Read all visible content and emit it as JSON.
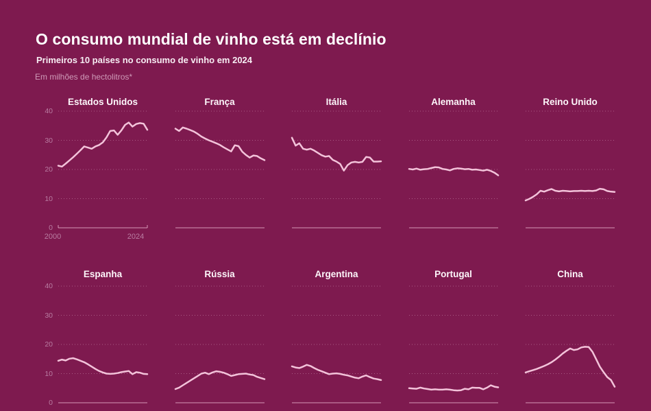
{
  "page": {
    "title": "O consumo mundial de vinho está em declínio",
    "subtitle": "Primeiros 10 países no consumo de vinho em 2024",
    "unit_note": "Em milhões de hectolitros*"
  },
  "colors": {
    "background": "#7e1a4f",
    "line": "#f3c3da",
    "grid_dotted": "rgba(243,195,218,0.38)",
    "axis_line": "rgba(243,195,218,0.75)",
    "tick_label": "#b97da2",
    "title_text": "#ffffff",
    "note_text": "#cf9ab8"
  },
  "chart_data": {
    "type": "line",
    "layout": "small multiples, 2 rows x 5 columns",
    "title": "O consumo mundial de vinho está em declínio",
    "subtitle": "Primeiros 10 países no consumo de vinho em 2024",
    "ylabel": "Em milhões de hectolitros*",
    "unit": "milhões de hectolitros",
    "x_start": 2000,
    "x_end": 2024,
    "ylim": [
      0,
      40
    ],
    "yticks": [
      0,
      10,
      20,
      30,
      40
    ],
    "yticks_labeled_on": "first column only",
    "xtick_labels": [
      "2000",
      "2024"
    ],
    "xticks_labeled_on": "first chart only",
    "grid": "dotted horizontal gridlines, solid zero axis",
    "legend_position": "none (panel titles)",
    "series": [
      {
        "name": "Estados Unidos",
        "values": [
          21.3,
          21.0,
          22.0,
          23.1,
          24.2,
          25.4,
          26.6,
          27.9,
          27.5,
          27.1,
          27.9,
          28.4,
          29.3,
          31.0,
          33.2,
          33.4,
          31.9,
          33.4,
          35.3,
          36.1,
          34.7,
          35.6,
          35.9,
          35.7,
          33.6
        ]
      },
      {
        "name": "França",
        "values": [
          34.0,
          33.2,
          34.4,
          34.0,
          33.5,
          33.0,
          32.2,
          31.3,
          30.6,
          30.0,
          29.5,
          29.0,
          28.4,
          27.6,
          26.9,
          26.2,
          28.3,
          28.0,
          26.1,
          25.0,
          24.1,
          24.8,
          24.6,
          23.8,
          23.2
        ]
      },
      {
        "name": "Itália",
        "values": [
          30.9,
          28.2,
          29.0,
          27.1,
          26.8,
          27.1,
          26.5,
          25.7,
          24.9,
          24.4,
          24.6,
          23.3,
          22.7,
          21.9,
          19.6,
          21.5,
          22.4,
          22.6,
          22.4,
          22.6,
          24.3,
          24.1,
          22.7,
          22.7,
          22.8
        ]
      },
      {
        "name": "Alemanha",
        "values": [
          20.2,
          20.0,
          20.3,
          19.9,
          20.1,
          20.2,
          20.5,
          20.8,
          20.7,
          20.2,
          20.0,
          19.7,
          20.2,
          20.4,
          20.3,
          20.1,
          20.2,
          19.9,
          20.0,
          19.8,
          19.6,
          19.9,
          19.5,
          18.9,
          18.0
        ]
      },
      {
        "name": "Reino Unido",
        "values": [
          9.4,
          9.9,
          10.6,
          11.5,
          12.7,
          12.4,
          12.9,
          13.3,
          12.7,
          12.5,
          12.7,
          12.6,
          12.5,
          12.6,
          12.6,
          12.7,
          12.6,
          12.7,
          12.6,
          12.8,
          13.4,
          13.2,
          12.6,
          12.4,
          12.3
        ]
      },
      {
        "name": "Espanha",
        "values": [
          14.4,
          14.8,
          14.5,
          15.1,
          15.3,
          14.9,
          14.4,
          13.9,
          13.2,
          12.4,
          11.6,
          10.9,
          10.4,
          10.0,
          9.9,
          10.0,
          10.2,
          10.5,
          10.7,
          10.9,
          9.8,
          10.5,
          10.3,
          9.9,
          9.8
        ]
      },
      {
        "name": "Rússia",
        "values": [
          4.7,
          5.2,
          6.0,
          6.8,
          7.6,
          8.4,
          9.2,
          10.0,
          10.3,
          9.8,
          10.4,
          10.8,
          10.6,
          10.3,
          9.8,
          9.2,
          9.5,
          9.8,
          9.9,
          10.0,
          9.7,
          9.5,
          8.9,
          8.5,
          8.1
        ]
      },
      {
        "name": "Argentina",
        "values": [
          12.5,
          12.1,
          11.9,
          12.4,
          13.0,
          12.6,
          11.9,
          11.3,
          10.8,
          10.3,
          9.8,
          10.0,
          10.1,
          9.9,
          9.6,
          9.4,
          9.0,
          8.6,
          8.4,
          9.0,
          9.4,
          8.8,
          8.3,
          8.1,
          7.8
        ]
      },
      {
        "name": "Portugal",
        "values": [
          5.0,
          4.9,
          4.8,
          5.2,
          4.9,
          4.7,
          4.5,
          4.6,
          4.5,
          4.5,
          4.6,
          4.5,
          4.3,
          4.2,
          4.3,
          4.8,
          4.6,
          5.2,
          5.1,
          5.1,
          4.6,
          5.2,
          6.0,
          5.5,
          5.3
        ]
      },
      {
        "name": "China",
        "values": [
          10.4,
          10.8,
          11.2,
          11.6,
          12.1,
          12.6,
          13.2,
          13.9,
          14.8,
          15.8,
          16.9,
          17.8,
          18.6,
          18.1,
          18.3,
          19.0,
          19.2,
          19.1,
          17.5,
          15.0,
          12.4,
          10.5,
          8.8,
          7.8,
          5.5
        ]
      }
    ]
  }
}
